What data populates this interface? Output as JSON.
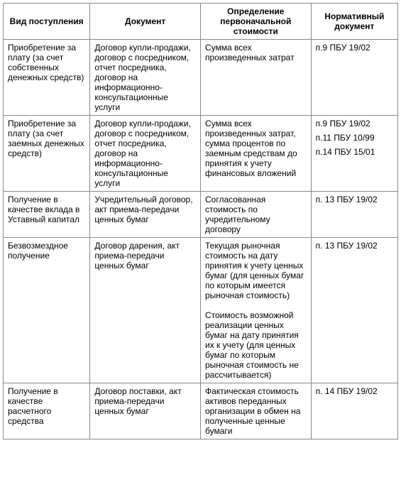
{
  "columns": [
    "Вид поступления",
    "Документ",
    "Определение первоначальной стоимости",
    "Нормативный документ"
  ],
  "rows": [
    {
      "col1": "Приобретение за плату (за счет собственных денежных средств)",
      "col2": "Договор купли-продажи, договор с посредником, отчет посредника, договор на информационно-консультационные услуги",
      "col3": "Сумма всех произведенных затрат",
      "col4_lines": [
        "п.9 ПБУ 19/02"
      ]
    },
    {
      "col1": "Приобретение за плату (за счет заемных денежных средств)",
      "col2": "Договор купли-продажи, договор с посредником, отчет посредника, договор на информационно-консультационные услуги",
      "col3": "Сумма всех произведенных затрат, сумма процентов по заемным средствам до принятия к учету финансовых вложений",
      "col4_lines": [
        "п.9 ПБУ 19/02",
        "п.11 ПБУ 10/99",
        "п.14 ПБУ 15/01"
      ]
    },
    {
      "col1": "Получение в качестве вклада в Уставный капитал",
      "col2": "Учредительный договор, акт приема-передачи ценных бумаг",
      "col3": "Согласованная стоимость по учредительному договору",
      "col4_lines": [
        "п. 13 ПБУ 19/02"
      ]
    },
    {
      "col1": "Безвозмездное получение",
      "col2": "Договор дарения, акт приема-передачи ценных бумаг",
      "col3_paras": [
        "Текущая рыночная стоимость на дату принятия к учету ценных бумаг (для ценных бумаг по которым имеется рыночная стоимость)",
        "Стоимость возможной реализации ценных бумаг на дату принятия их к учету (для ценных бумаг по которым рыночная стоимость не рассчитывается)"
      ],
      "col4_lines": [
        "п. 13 ПБУ 19/02"
      ]
    },
    {
      "col1": "Получение в качестве расчетного средства",
      "col2": "Договор поставки, акт приема-передачи ценных бумаг",
      "col3": "Фактическая стоимость активов переданных организации в обмен на полученные ценные бумаги",
      "col4_lines": [
        "п. 14 ПБУ 19/02"
      ]
    }
  ]
}
